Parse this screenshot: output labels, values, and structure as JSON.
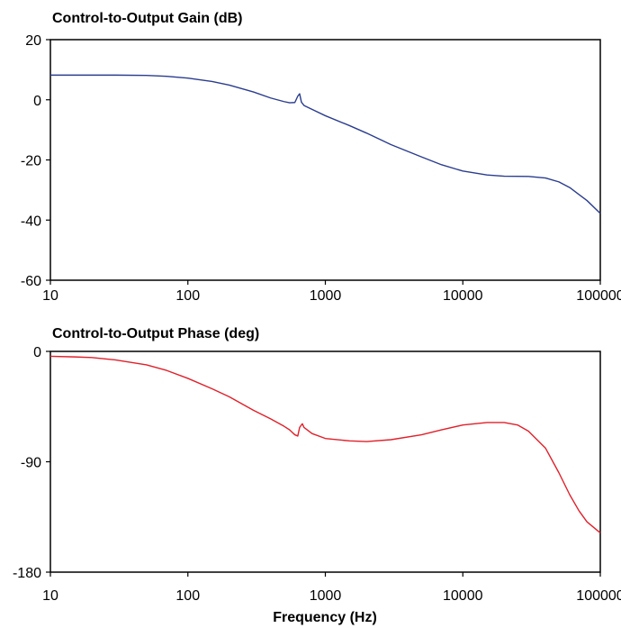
{
  "chart_data": [
    {
      "type": "line",
      "title": "Control-to-Output Gain (dB)",
      "xlabel": "",
      "ylabel": "",
      "x_scale": "log",
      "xlim": [
        10,
        100000
      ],
      "ylim": [
        -60,
        20
      ],
      "x_ticks": [
        "10",
        "100",
        "1000",
        "10000",
        "100000"
      ],
      "y_ticks": [
        "20",
        "0",
        "-20",
        "-40",
        "-60"
      ],
      "grid": false,
      "legend": "none",
      "color": "#2a3d8f",
      "series": [
        {
          "x": [
            10,
            20,
            30,
            50,
            70,
            100,
            150,
            200,
            300,
            400,
            500,
            550,
            600,
            630,
            650,
            670,
            700,
            800,
            1000,
            1500,
            2000,
            3000,
            5000,
            7000,
            10000,
            15000,
            20000,
            30000,
            40000,
            50000,
            60000,
            70000,
            80000,
            100000
          ],
          "values": [
            8.2,
            8.2,
            8.2,
            8.1,
            7.8,
            7.2,
            6.1,
            4.9,
            2.6,
            0.6,
            -0.6,
            -1.0,
            -0.9,
            1.2,
            2.0,
            -0.8,
            -1.9,
            -3.2,
            -5.3,
            -8.6,
            -11.1,
            -14.9,
            -19.0,
            -21.6,
            -23.7,
            -25.0,
            -25.4,
            -25.5,
            -26.0,
            -27.3,
            -29.2,
            -31.5,
            -33.5,
            -37.8
          ]
        }
      ]
    },
    {
      "type": "line",
      "title": "Control-to-Output Phase (deg)",
      "xlabel": "Frequency (Hz)",
      "ylabel": "",
      "x_scale": "log",
      "xlim": [
        10,
        100000
      ],
      "ylim": [
        -180,
        0
      ],
      "x_ticks": [
        "10",
        "100",
        "1000",
        "10000",
        "100000"
      ],
      "y_ticks": [
        "0",
        "-90",
        "-180"
      ],
      "grid": false,
      "legend": "none",
      "color": "#e0202a",
      "series": [
        {
          "x": [
            10,
            15,
            20,
            30,
            50,
            70,
            100,
            150,
            200,
            300,
            400,
            500,
            550,
            600,
            630,
            650,
            680,
            700,
            800,
            1000,
            1500,
            2000,
            3000,
            5000,
            7000,
            10000,
            15000,
            20000,
            25000,
            30000,
            40000,
            50000,
            60000,
            70000,
            80000,
            100000
          ],
          "values": [
            -4,
            -4.5,
            -5,
            -7,
            -11,
            -15.5,
            -22,
            -30.5,
            -37,
            -48,
            -55,
            -61,
            -64,
            -68,
            -69,
            -62,
            -59,
            -62,
            -67,
            -71,
            -73,
            -73.5,
            -72,
            -68,
            -64,
            -60,
            -58,
            -58,
            -60,
            -65,
            -79,
            -99,
            -117,
            -130,
            -139,
            -148
          ]
        }
      ]
    }
  ]
}
